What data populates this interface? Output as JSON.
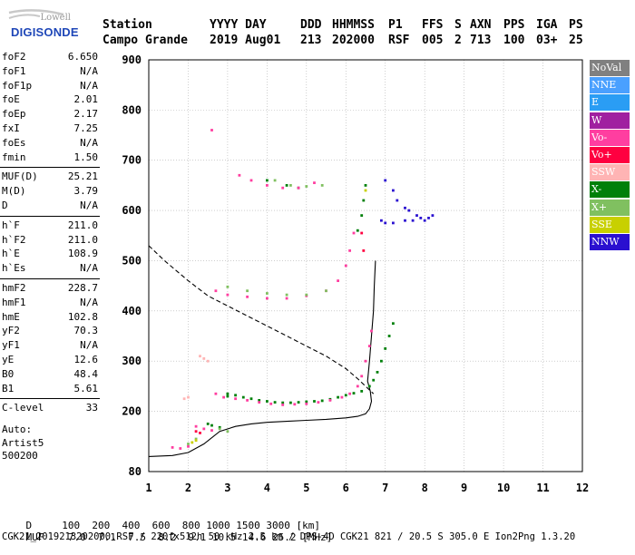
{
  "logo": {
    "top": "Lowell",
    "bottom": "DIGISONDE"
  },
  "header": {
    "row1": {
      "station": "Station",
      "yyyy_day": "YYYY DAY",
      "ddd": "DDD",
      "hhmmss": "HHMMSS",
      "p1": "P1",
      "ffs": "FFS",
      "s": "S",
      "axn": "AXN",
      "pps": "PPS",
      "iga": "IGA",
      "ps": "PS"
    },
    "row2": {
      "station": "Campo Grande",
      "yyyy_day": "2019 Aug01",
      "ddd": "213",
      "hhmmss": "202000",
      "p1": "RSF",
      "ffs": "005",
      "s": "2",
      "axn": "713",
      "pps": "100",
      "iga": "03+",
      "ps": "25"
    }
  },
  "side_params": [
    {
      "k": "foF2",
      "v": "6.650"
    },
    {
      "k": "foF1",
      "v": "N/A"
    },
    {
      "k": "foF1p",
      "v": "N/A"
    },
    {
      "k": "foE",
      "v": "2.01"
    },
    {
      "k": "foEp",
      "v": "2.17"
    },
    {
      "k": "fxI",
      "v": "7.25"
    },
    {
      "k": "foEs",
      "v": "N/A"
    },
    {
      "k": "fmin",
      "v": "1.50"
    },
    {
      "k": "MUF(D)",
      "v": "25.21"
    },
    {
      "k": "M(D)",
      "v": "3.79"
    },
    {
      "k": "D",
      "v": "N/A"
    },
    {
      "k": "h`F",
      "v": "211.0"
    },
    {
      "k": "h`F2",
      "v": "211.0"
    },
    {
      "k": "h`E",
      "v": "108.9"
    },
    {
      "k": "h`Es",
      "v": "N/A"
    },
    {
      "k": "hmF2",
      "v": "228.7"
    },
    {
      "k": "hmF1",
      "v": "N/A"
    },
    {
      "k": "hmE",
      "v": "102.8"
    },
    {
      "k": "yF2",
      "v": "70.3"
    },
    {
      "k": "yF1",
      "v": "N/A"
    },
    {
      "k": "yE",
      "v": "12.6"
    },
    {
      "k": "B0",
      "v": "48.4"
    },
    {
      "k": "B1",
      "v": "5.61"
    },
    {
      "k": "C-level",
      "v": "33"
    }
  ],
  "auto": {
    "line1": "Auto:",
    "line2": "Artist5",
    "line3": "500200"
  },
  "legend": [
    {
      "label": "NoVal",
      "color": "#808080"
    },
    {
      "label": "NNE",
      "color": "#4aa0ff"
    },
    {
      "label": "E",
      "color": "#2a9df4"
    },
    {
      "label": "W",
      "color": "#a020a0"
    },
    {
      "label": "Vo-",
      "color": "#ff3ea0"
    },
    {
      "label": "Vo+",
      "color": "#ff0040"
    },
    {
      "label": "SSW",
      "color": "#ffb4b4"
    },
    {
      "label": "X-",
      "color": "#00800a"
    },
    {
      "label": "X+",
      "color": "#80c060"
    },
    {
      "label": "SSE",
      "color": "#c8d000"
    },
    {
      "label": "NNW",
      "color": "#2a10d0"
    }
  ],
  "bottom": {
    "d_label": "D",
    "d_values": "100  200  400  600  800 1000 1500 3000 [km]",
    "muf_label": "MUF",
    "muf_values": "7.0  7.1  7.5  8.2  9.1 10.5 14.6 25.2 [MHz]",
    "footer": "CGK21_2019213202000.RSF / 220fx512h 50 kHz 2.5 km / DPS-4D CGK21 821 / 20.5 S 305.0 E Ion2Png 1.3.20"
  },
  "chart_data": {
    "type": "scatter",
    "xlim": [
      1,
      12
    ],
    "ylim": [
      80,
      900
    ],
    "xticks": [
      "1",
      "2",
      "3",
      "4",
      "5",
      "6",
      "7",
      "8",
      "9",
      "10",
      "11",
      "12"
    ],
    "yticks": [
      "80",
      "200",
      "300",
      "400",
      "500",
      "600",
      "700",
      "800",
      "900"
    ],
    "grid": true,
    "legend_position": "right",
    "series": [
      {
        "group": "X-",
        "color": "#00800a",
        "points": [
          [
            3.0,
            230
          ],
          [
            3.2,
            232
          ],
          [
            3.4,
            228
          ],
          [
            3.6,
            225
          ],
          [
            3.8,
            222
          ],
          [
            4.0,
            220
          ],
          [
            4.2,
            218
          ],
          [
            4.4,
            217
          ],
          [
            4.6,
            217
          ],
          [
            4.8,
            218
          ],
          [
            5.0,
            219
          ],
          [
            5.2,
            220
          ],
          [
            5.4,
            221
          ],
          [
            5.6,
            224
          ],
          [
            5.8,
            228
          ],
          [
            6.0,
            232
          ],
          [
            6.2,
            236
          ],
          [
            6.4,
            240
          ],
          [
            6.6,
            250
          ],
          [
            6.7,
            262
          ],
          [
            6.8,
            278
          ],
          [
            6.9,
            300
          ],
          [
            7.0,
            325
          ],
          [
            7.1,
            350
          ],
          [
            7.2,
            375
          ],
          [
            6.3,
            560
          ],
          [
            6.4,
            590
          ],
          [
            6.45,
            620
          ],
          [
            6.5,
            650
          ],
          [
            4.0,
            660
          ],
          [
            4.5,
            650
          ],
          [
            4.8,
            645
          ],
          [
            2.5,
            175
          ],
          [
            2.6,
            172
          ],
          [
            2.8,
            168
          ],
          [
            3.0,
            235
          ]
        ]
      },
      {
        "group": "Vo-",
        "color": "#ff3ea0",
        "points": [
          [
            2.7,
            235
          ],
          [
            2.9,
            228
          ],
          [
            3.2,
            225
          ],
          [
            3.5,
            222
          ],
          [
            3.8,
            218
          ],
          [
            4.1,
            215
          ],
          [
            4.4,
            213
          ],
          [
            4.7,
            214
          ],
          [
            5.0,
            215
          ],
          [
            5.3,
            218
          ],
          [
            5.6,
            222
          ],
          [
            5.9,
            228
          ],
          [
            6.1,
            235
          ],
          [
            6.3,
            250
          ],
          [
            6.4,
            270
          ],
          [
            6.5,
            300
          ],
          [
            6.6,
            330
          ],
          [
            6.65,
            360
          ],
          [
            2.7,
            440
          ],
          [
            3.0,
            432
          ],
          [
            3.5,
            428
          ],
          [
            4.0,
            425
          ],
          [
            4.5,
            425
          ],
          [
            5.0,
            430
          ],
          [
            5.5,
            440
          ],
          [
            5.8,
            460
          ],
          [
            6.0,
            490
          ],
          [
            6.1,
            520
          ],
          [
            6.2,
            555
          ],
          [
            3.3,
            670
          ],
          [
            3.6,
            660
          ],
          [
            4.0,
            650
          ],
          [
            4.4,
            645
          ],
          [
            4.8,
            645
          ],
          [
            5.2,
            655
          ],
          [
            2.2,
            170
          ],
          [
            2.4,
            165
          ],
          [
            2.6,
            162
          ],
          [
            1.6,
            128
          ],
          [
            1.8,
            126
          ],
          [
            2.0,
            130
          ],
          [
            2.6,
            760
          ]
        ]
      },
      {
        "group": "NNW",
        "color": "#2a10d0",
        "points": [
          [
            7.0,
            660
          ],
          [
            7.2,
            640
          ],
          [
            7.3,
            620
          ],
          [
            7.5,
            605
          ],
          [
            7.6,
            600
          ],
          [
            7.8,
            590
          ],
          [
            7.9,
            585
          ],
          [
            8.0,
            580
          ],
          [
            8.1,
            585
          ],
          [
            8.2,
            590
          ],
          [
            7.7,
            580
          ],
          [
            7.5,
            580
          ],
          [
            7.2,
            575
          ],
          [
            7.0,
            575
          ],
          [
            6.9,
            580
          ]
        ]
      },
      {
        "group": "X+",
        "color": "#80c060",
        "points": [
          [
            4.2,
            660
          ],
          [
            4.6,
            650
          ],
          [
            5.0,
            648
          ],
          [
            5.4,
            650
          ],
          [
            3.0,
            448
          ],
          [
            3.5,
            440
          ],
          [
            4.0,
            435
          ],
          [
            4.5,
            432
          ],
          [
            5.0,
            432
          ],
          [
            5.5,
            440
          ],
          [
            2.8,
            165
          ],
          [
            3.0,
            160
          ],
          [
            2.0,
            135
          ],
          [
            2.2,
            145
          ]
        ]
      },
      {
        "group": "SSE",
        "color": "#c8d000",
        "points": [
          [
            2.1,
            138
          ],
          [
            2.2,
            142
          ],
          [
            6.5,
            640
          ]
        ]
      },
      {
        "group": "SSW",
        "color": "#ffb4b4",
        "points": [
          [
            2.3,
            310
          ],
          [
            2.4,
            305
          ],
          [
            2.5,
            300
          ],
          [
            1.9,
            225
          ],
          [
            2.0,
            228
          ]
        ]
      },
      {
        "group": "Vo+",
        "color": "#ff0040",
        "points": [
          [
            2.2,
            160
          ],
          [
            2.3,
            157
          ],
          [
            6.4,
            555
          ],
          [
            6.45,
            520
          ]
        ]
      }
    ],
    "lines": [
      {
        "style": "solid",
        "points": [
          [
            1.0,
            110
          ],
          [
            1.6,
            112
          ],
          [
            2.0,
            118
          ],
          [
            2.4,
            135
          ],
          [
            2.8,
            160
          ],
          [
            3.2,
            170
          ],
          [
            3.6,
            175
          ],
          [
            4.0,
            178
          ],
          [
            4.5,
            180
          ],
          [
            5.0,
            182
          ],
          [
            5.5,
            184
          ],
          [
            6.0,
            187
          ],
          [
            6.3,
            190
          ],
          [
            6.5,
            195
          ],
          [
            6.6,
            205
          ],
          [
            6.65,
            220
          ],
          [
            6.62,
            240
          ],
          [
            6.55,
            260
          ],
          [
            6.6,
            300
          ],
          [
            6.65,
            350
          ],
          [
            6.7,
            400
          ],
          [
            6.72,
            450
          ],
          [
            6.75,
            500
          ]
        ]
      },
      {
        "style": "dashed",
        "points": [
          [
            1.0,
            530
          ],
          [
            1.4,
            500
          ],
          [
            2.0,
            460
          ],
          [
            2.5,
            430
          ],
          [
            3.0,
            410
          ],
          [
            3.5,
            390
          ],
          [
            4.0,
            370
          ],
          [
            4.5,
            350
          ],
          [
            5.0,
            330
          ],
          [
            5.5,
            310
          ],
          [
            6.0,
            285
          ],
          [
            6.3,
            265
          ],
          [
            6.5,
            250
          ],
          [
            6.7,
            235
          ]
        ]
      }
    ]
  }
}
